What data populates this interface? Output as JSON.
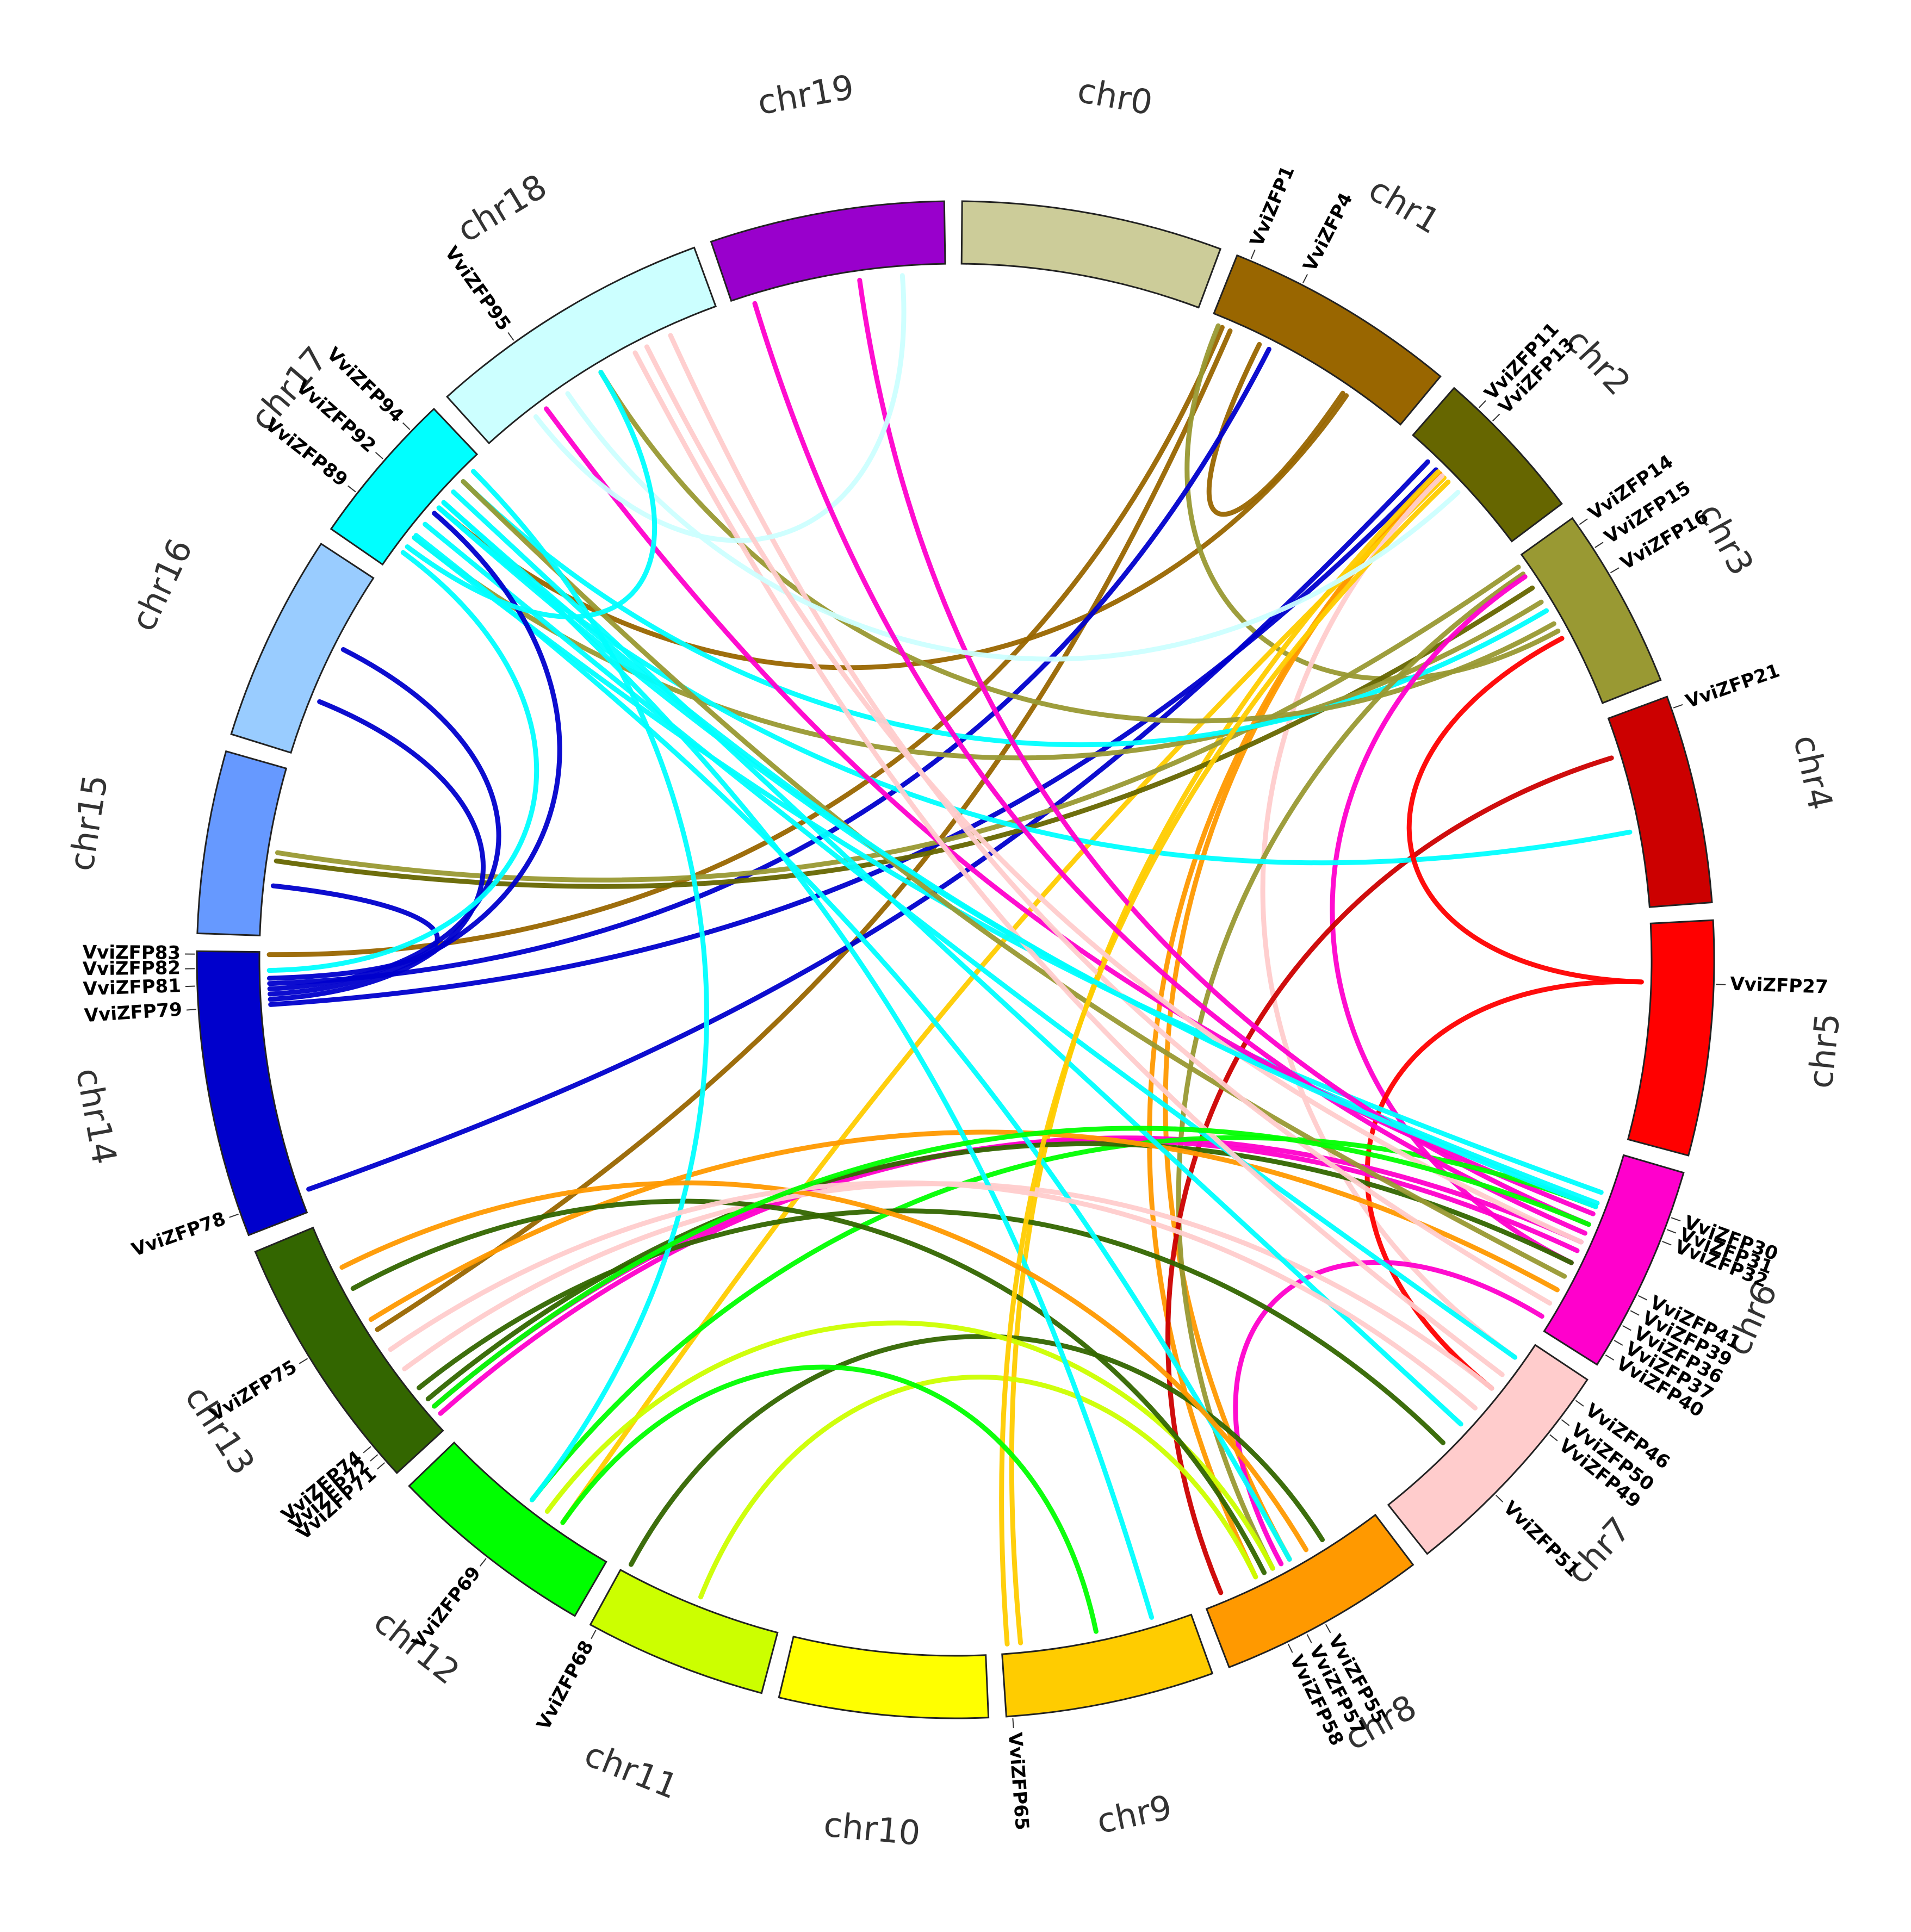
{
  "chromosomes": [
    {
      "name": "chr0",
      "color": "#cccc99",
      "length": 10
    },
    {
      "name": "chr1",
      "color": "#996600",
      "length": 9
    },
    {
      "name": "chr2",
      "color": "#666600",
      "length": 6
    },
    {
      "name": "chr3",
      "color": "#999933",
      "length": 7
    },
    {
      "name": "chr4",
      "color": "#cc0000",
      "length": 8
    },
    {
      "name": "chr5",
      "color": "#ff0000",
      "length": 9
    },
    {
      "name": "chr6",
      "color": "#ff00cc",
      "length": 8
    },
    {
      "name": "chr7",
      "color": "#ffcccc",
      "length": 9
    },
    {
      "name": "chr8",
      "color": "#ff9900",
      "length": 8
    },
    {
      "name": "chr9",
      "color": "#ffcc00",
      "length": 8
    },
    {
      "name": "chr10",
      "color": "#ffff00",
      "length": 8
    },
    {
      "name": "chr11",
      "color": "#ccff00",
      "length": 7
    },
    {
      "name": "chr12",
      "color": "#00ff00",
      "length": 8
    },
    {
      "name": "chr13",
      "color": "#336600",
      "length": 10
    },
    {
      "name": "chr14",
      "color": "#0000cc",
      "length": 11
    },
    {
      "name": "chr15",
      "color": "#6699ff",
      "length": 7
    },
    {
      "name": "chr16",
      "color": "#99ccff",
      "length": 8
    },
    {
      "name": "chr17",
      "color": "#00ffff",
      "length": 6
    },
    {
      "name": "chr18",
      "color": "#ccffff",
      "length": 11
    },
    {
      "name": "chr19",
      "color": "#9900cc",
      "length": 9
    }
  ],
  "genes": [
    {
      "name": "VviZFP1",
      "chr": "chr1",
      "pos": 0.06
    },
    {
      "name": "VviZFP4",
      "chr": "chr1",
      "pos": 0.3
    },
    {
      "name": "VviZFP11",
      "chr": "chr2",
      "pos": 0.2
    },
    {
      "name": "VviZFP13",
      "chr": "chr2",
      "pos": 0.32
    },
    {
      "name": "VviZFP14",
      "chr": "chr3",
      "pos": 0.05
    },
    {
      "name": "VviZFP15",
      "chr": "chr3",
      "pos": 0.2
    },
    {
      "name": "VviZFP16",
      "chr": "chr3",
      "pos": 0.36
    },
    {
      "name": "VviZFP21",
      "chr": "chr4",
      "pos": 0.06
    },
    {
      "name": "VviZFP27",
      "chr": "chr5",
      "pos": 0.27
    },
    {
      "name": "VviZFP30",
      "chr": "chr6",
      "pos": 0.22
    },
    {
      "name": "VviZFP31",
      "chr": "chr6",
      "pos": 0.28
    },
    {
      "name": "VviZFP32",
      "chr": "chr6",
      "pos": 0.34
    },
    {
      "name": "VviZFP41",
      "chr": "chr6",
      "pos": 0.62
    },
    {
      "name": "VviZFP39",
      "chr": "chr6",
      "pos": 0.7
    },
    {
      "name": "VviZFP36",
      "chr": "chr6",
      "pos": 0.78
    },
    {
      "name": "VviZFP37",
      "chr": "chr6",
      "pos": 0.86
    },
    {
      "name": "VviZFP40",
      "chr": "chr6",
      "pos": 0.94
    },
    {
      "name": "VviZFP46",
      "chr": "chr7",
      "pos": 0.1
    },
    {
      "name": "VviZFP50",
      "chr": "chr7",
      "pos": 0.2
    },
    {
      "name": "VviZFP49",
      "chr": "chr7",
      "pos": 0.28
    },
    {
      "name": "VviZFP51",
      "chr": "chr7",
      "pos": 0.62
    },
    {
      "name": "VviZFP55",
      "chr": "chr8",
      "pos": 0.5
    },
    {
      "name": "VviZFP57",
      "chr": "chr8",
      "pos": 0.6
    },
    {
      "name": "VviZFP58",
      "chr": "chr8",
      "pos": 0.7
    },
    {
      "name": "VviZFP65",
      "chr": "chr9",
      "pos": 0.97
    },
    {
      "name": "VviZFP68",
      "chr": "chr11",
      "pos": 0.96
    },
    {
      "name": "VviZFP69",
      "chr": "chr12",
      "pos": 0.5
    },
    {
      "name": "VviZFP71",
      "chr": "chr13",
      "pos": 0.06
    },
    {
      "name": "VviZFP72",
      "chr": "chr13",
      "pos": 0.1
    },
    {
      "name": "VviZFP74",
      "chr": "chr13",
      "pos": 0.14
    },
    {
      "name": "VviZFP75",
      "chr": "chr13",
      "pos": 0.55
    },
    {
      "name": "VviZFP78",
      "chr": "chr14",
      "pos": 0.08
    },
    {
      "name": "VviZFP79",
      "chr": "chr14",
      "pos": 0.8
    },
    {
      "name": "VviZFP81",
      "chr": "chr14",
      "pos": 0.88
    },
    {
      "name": "VviZFP82",
      "chr": "chr14",
      "pos": 0.94
    },
    {
      "name": "VviZFP83",
      "chr": "chr14",
      "pos": 0.99
    },
    {
      "name": "VviZFP89",
      "chr": "chr17",
      "pos": 0.28
    },
    {
      "name": "VviZFP92",
      "chr": "chr17",
      "pos": 0.55
    },
    {
      "name": "VviZFP94",
      "chr": "chr17",
      "pos": 0.8
    },
    {
      "name": "VviZFP95",
      "chr": "chr18",
      "pos": 0.3
    }
  ],
  "links": [
    {
      "from": [
        "chr1",
        0.06
      ],
      "to": [
        "chr14",
        0.99
      ],
      "color": "#996600"
    },
    {
      "from": [
        "chr1",
        0.1
      ],
      "to": [
        "chr13",
        0.5
      ],
      "color": "#996600"
    },
    {
      "from": [
        "chr1",
        0.25
      ],
      "to": [
        "chr1",
        0.7
      ],
      "color": "#996600"
    },
    {
      "from": [
        "chr1",
        0.72
      ],
      "to": [
        "chr17",
        0.55
      ],
      "color": "#996600"
    },
    {
      "from": [
        "chr1",
        0.04
      ],
      "to": [
        "chr3",
        0.5
      ],
      "color": "#999933"
    },
    {
      "from": [
        "chr1",
        0.3
      ],
      "to": [
        "chr14",
        0.88
      ],
      "color": "#0000cc"
    },
    {
      "from": [
        "chr2",
        0.2
      ],
      "to": [
        "chr14",
        0.08
      ],
      "color": "#0000cc"
    },
    {
      "from": [
        "chr2",
        0.28
      ],
      "to": [
        "chr14",
        0.8
      ],
      "color": "#0000cc"
    },
    {
      "from": [
        "chr2",
        0.32
      ],
      "to": [
        "chr8",
        0.5
      ],
      "color": "#ff9900"
    },
    {
      "from": [
        "chr2",
        0.32
      ],
      "to": [
        "chr8",
        0.7
      ],
      "color": "#ff9900"
    },
    {
      "from": [
        "chr2",
        0.36
      ],
      "to": [
        "chr12",
        0.3
      ],
      "color": "#ffcc00"
    },
    {
      "from": [
        "chr2",
        0.3
      ],
      "to": [
        "chr9",
        0.9
      ],
      "color": "#ffcc00"
    },
    {
      "from": [
        "chr2",
        0.34
      ],
      "to": [
        "chr7",
        0.1
      ],
      "color": "#ffcccc"
    },
    {
      "from": [
        "chr3",
        0.05
      ],
      "to": [
        "chr15",
        0.5
      ],
      "color": "#999933"
    },
    {
      "from": [
        "chr3",
        0.2
      ],
      "to": [
        "chr15",
        0.45
      ],
      "color": "#666600"
    },
    {
      "from": [
        "chr3",
        0.3
      ],
      "to": [
        "chr17",
        0.28
      ],
      "color": "#999933"
    },
    {
      "from": [
        "chr3",
        0.36
      ],
      "to": [
        "chr17",
        0.8
      ],
      "color": "#00ffff"
    },
    {
      "from": [
        "chr3",
        0.45
      ],
      "to": [
        "chr18",
        0.5
      ],
      "color": "#999933"
    },
    {
      "from": [
        "chr3",
        0.1
      ],
      "to": [
        "chr8",
        0.6
      ],
      "color": "#999933"
    },
    {
      "from": [
        "chr3",
        0.12
      ],
      "to": [
        "chr6",
        0.62
      ],
      "color": "#ff00cc"
    },
    {
      "from": [
        "chr4",
        0.2
      ],
      "to": [
        "chr8",
        0.9
      ],
      "color": "#cc0000"
    },
    {
      "from": [
        "chr4",
        0.6
      ],
      "to": [
        "chr17",
        0.55
      ],
      "color": "#00ffff"
    },
    {
      "from": [
        "chr5",
        0.27
      ],
      "to": [
        "chr3",
        0.55
      ],
      "color": "#ff0000"
    },
    {
      "from": [
        "chr5",
        0.27
      ],
      "to": [
        "chr7",
        0.28
      ],
      "color": "#ff0000"
    },
    {
      "from": [
        "chr6",
        0.22
      ],
      "to": [
        "chr17",
        0.28
      ],
      "color": "#00ffff"
    },
    {
      "from": [
        "chr6",
        0.28
      ],
      "to": [
        "chr17",
        0.55
      ],
      "color": "#00ffff"
    },
    {
      "from": [
        "chr6",
        0.34
      ],
      "to": [
        "chr18",
        0.25
      ],
      "color": "#ff00cc"
    },
    {
      "from": [
        "chr6",
        0.4
      ],
      "to": [
        "chr19",
        0.6
      ],
      "color": "#ff00cc"
    },
    {
      "from": [
        "chr6",
        0.5
      ],
      "to": [
        "chr13",
        0.06
      ],
      "color": "#ff00cc"
    },
    {
      "from": [
        "chr6",
        0.55
      ],
      "to": [
        "chr13",
        0.1
      ],
      "color": "#ff00cc"
    },
    {
      "from": [
        "chr6",
        0.3
      ],
      "to": [
        "chr12",
        0.5
      ],
      "color": "#00ff00"
    },
    {
      "from": [
        "chr6",
        0.62
      ],
      "to": [
        "chr13",
        0.14
      ],
      "color": "#336600"
    },
    {
      "from": [
        "chr6",
        0.7
      ],
      "to": [
        "chr17",
        0.8
      ],
      "color": "#999933"
    },
    {
      "from": [
        "chr6",
        0.78
      ],
      "to": [
        "chr13",
        0.55
      ],
      "color": "#ff9900"
    },
    {
      "from": [
        "chr6",
        0.86
      ],
      "to": [
        "chr18",
        0.8
      ],
      "color": "#ffcccc"
    },
    {
      "from": [
        "chr6",
        0.94
      ],
      "to": [
        "chr8",
        0.55
      ],
      "color": "#ff00cc"
    },
    {
      "from": [
        "chr7",
        0.1
      ],
      "to": [
        "chr17",
        0.4
      ],
      "color": "#00ffff"
    },
    {
      "from": [
        "chr7",
        0.2
      ],
      "to": [
        "chr18",
        0.65
      ],
      "color": "#ffcccc"
    },
    {
      "from": [
        "chr7",
        0.28
      ],
      "to": [
        "chr13",
        0.3
      ],
      "color": "#ffcccc"
    },
    {
      "from": [
        "chr7",
        0.5
      ],
      "to": [
        "chr17",
        0.7
      ],
      "color": "#00ffff"
    },
    {
      "from": [
        "chr7",
        0.62
      ],
      "to": [
        "chr13",
        0.2
      ],
      "color": "#336600"
    },
    {
      "from": [
        "chr8",
        0.3
      ],
      "to": [
        "chr11",
        0.96
      ],
      "color": "#336600"
    },
    {
      "from": [
        "chr8",
        0.5
      ],
      "to": [
        "chr17",
        0.3
      ],
      "color": "#00ffff"
    },
    {
      "from": [
        "chr8",
        0.6
      ],
      "to": [
        "chr12",
        0.4
      ],
      "color": "#ccff00"
    },
    {
      "from": [
        "chr8",
        0.65
      ],
      "to": [
        "chr13",
        0.7
      ],
      "color": "#336600"
    },
    {
      "from": [
        "chr8",
        0.7
      ],
      "to": [
        "chr11",
        0.5
      ],
      "color": "#ccff00"
    },
    {
      "from": [
        "chr9",
        0.2
      ],
      "to": [
        "chr17",
        0.6
      ],
      "color": "#00ffff"
    },
    {
      "from": [
        "chr9",
        0.97
      ],
      "to": [
        "chr2",
        0.4
      ],
      "color": "#ffcc00"
    },
    {
      "from": [
        "chr9",
        0.5
      ],
      "to": [
        "chr12",
        0.3
      ],
      "color": "#00ff00"
    },
    {
      "from": [
        "chr12",
        0.5
      ],
      "to": [
        "chr17",
        0.9
      ],
      "color": "#00ffff"
    },
    {
      "from": [
        "chr13",
        0.8
      ],
      "to": [
        "chr8",
        0.4
      ],
      "color": "#ff9900"
    },
    {
      "from": [
        "chr14",
        0.82
      ],
      "to": [
        "chr16",
        0.3
      ],
      "color": "#0000cc"
    },
    {
      "from": [
        "chr14",
        0.86
      ],
      "to": [
        "chr16",
        0.6
      ],
      "color": "#0000cc"
    },
    {
      "from": [
        "chr14",
        0.9
      ],
      "to": [
        "chr15",
        0.3
      ],
      "color": "#0000cc"
    },
    {
      "from": [
        "chr14",
        0.84
      ],
      "to": [
        "chr17",
        0.5
      ],
      "color": "#0000cc"
    },
    {
      "from": [
        "chr14",
        0.93
      ],
      "to": [
        "chr17",
        0.15
      ],
      "color": "#00ffff"
    },
    {
      "from": [
        "chr18",
        0.2
      ],
      "to": [
        "chr19",
        0.8
      ],
      "color": "#ccffff"
    },
    {
      "from": [
        "chr18",
        0.35
      ],
      "to": [
        "chr2",
        0.5
      ],
      "color": "#ccffff"
    },
    {
      "from": [
        "chr18",
        0.5
      ],
      "to": [
        "chr17",
        0.2
      ],
      "color": "#00ffff"
    },
    {
      "from": [
        "chr19",
        0.1
      ],
      "to": [
        "chr6",
        0.45
      ],
      "color": "#ff00cc"
    },
    {
      "from": [
        "chr18",
        0.7
      ],
      "to": [
        "chr6",
        0.5
      ],
      "color": "#ffcccc"
    },
    {
      "from": [
        "chr17",
        0.6
      ],
      "to": [
        "chr6",
        0.3
      ],
      "color": "#00ffff"
    },
    {
      "from": [
        "chr13",
        0.4
      ],
      "to": [
        "chr7",
        0.4
      ],
      "color": "#ffcccc"
    },
    {
      "from": [
        "chr13",
        0.1
      ],
      "to": [
        "chr6",
        0.4
      ],
      "color": "#00ff00"
    }
  ]
}
